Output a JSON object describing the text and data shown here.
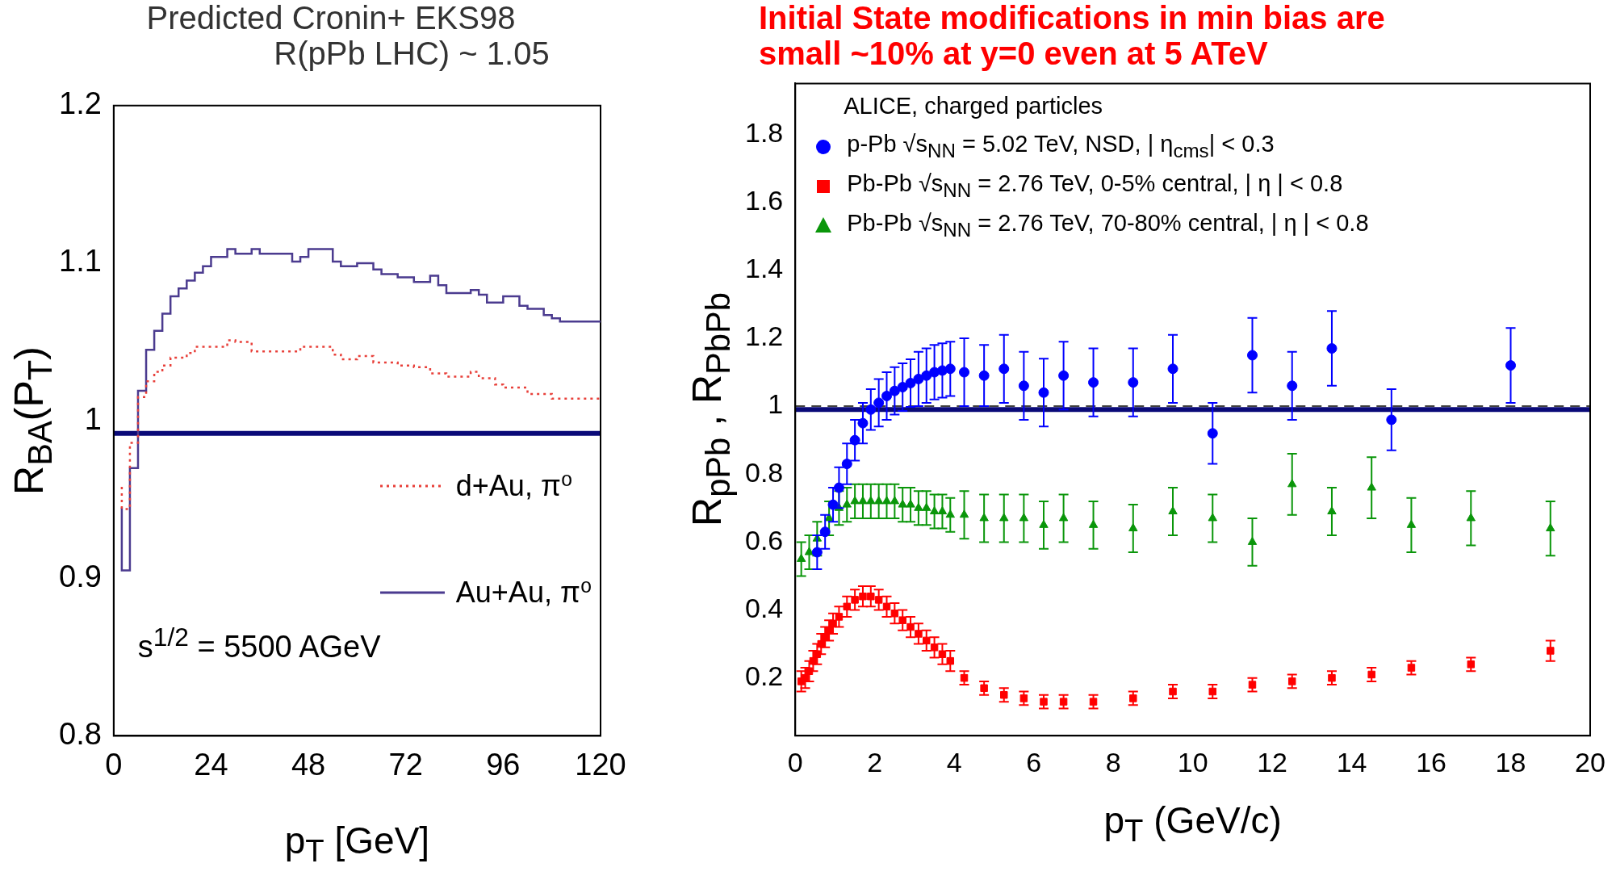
{
  "chart_data": [
    {
      "type": "step",
      "title": "Predicted Cronin+ EKS98",
      "subtitle": "R(pPb LHC) ~ 1.05",
      "xlabel": "p$_{T}$ [GeV]",
      "ylabel": "R$_{BA}$(P$_{T}$)",
      "xlim": [
        0,
        120
      ],
      "xticks": [
        0,
        24,
        48,
        72,
        96,
        120
      ],
      "ylim": [
        0.8,
        1.2
      ],
      "yticks": [
        0.8,
        0.9,
        1,
        1.1,
        1.2
      ],
      "grid": false,
      "legend": "bottom right",
      "annotations": [
        "s$^{1/2}$ = 5500 AGeV"
      ],
      "ref_lines": [
        {
          "axis": "y",
          "value": 0.992,
          "color": "#0a0a78"
        }
      ],
      "series": [
        {
          "name": "d+Au, π⁰",
          "color": "#e8403a",
          "line_style": "dotted",
          "x": [
            2,
            4,
            6,
            8,
            10,
            12,
            14,
            18,
            20,
            28,
            30,
            34,
            46,
            54,
            56,
            60,
            64,
            70,
            74,
            78,
            82,
            88,
            90,
            94,
            96,
            102,
            108,
            114,
            120
          ],
          "values": [
            0.958,
            0.944,
            0.986,
            1.015,
            1.025,
            1.031,
            1.035,
            1.04,
            1.043,
            1.047,
            1.051,
            1.05,
            1.044,
            1.047,
            1.042,
            1.039,
            1.041,
            1.037,
            1.035,
            1.034,
            1.03,
            1.028,
            1.031,
            1.027,
            1.023,
            1.021,
            1.017,
            1.014,
            1.014
          ]
        },
        {
          "name": "Au+Au, π⁰",
          "color": "#4b3b8f",
          "line_style": "solid",
          "x": [
            2,
            4,
            6,
            8,
            10,
            12,
            14,
            16,
            18,
            20,
            22,
            24,
            28,
            30,
            34,
            36,
            44,
            46,
            48,
            54,
            56,
            60,
            64,
            66,
            70,
            74,
            78,
            80,
            82,
            88,
            90,
            92,
            96,
            100,
            102,
            106,
            108,
            110,
            114,
            120
          ],
          "values": [
            0.945,
            0.905,
            0.97,
            1.019,
            1.045,
            1.057,
            1.068,
            1.079,
            1.084,
            1.089,
            1.094,
            1.098,
            1.104,
            1.109,
            1.106,
            1.109,
            1.106,
            1.101,
            1.104,
            1.109,
            1.101,
            1.098,
            1.1,
            1.096,
            1.093,
            1.091,
            1.088,
            1.092,
            1.086,
            1.081,
            1.083,
            1.08,
            1.075,
            1.079,
            1.073,
            1.071,
            1.067,
            1.065,
            1.063,
            1.063
          ]
        }
      ]
    },
    {
      "type": "scatter",
      "title": "Initial State modifications in min bias are",
      "subtitle": "small ~10% at y=0  even at 5  ATeV",
      "xlabel": "p$_{T}$ (GeV/c)",
      "ylabel": "R$_{pPb}$ , R$_{PbPb}$",
      "legend_title": "ALICE, charged particles",
      "legend": "top left",
      "xlim": [
        0,
        20
      ],
      "xticks": [
        0,
        2,
        4,
        6,
        8,
        10,
        12,
        14,
        16,
        18,
        20
      ],
      "ylim": [
        0.03,
        1.95
      ],
      "yticks": [
        0.2,
        0.4,
        0.6,
        0.8,
        1,
        1.2,
        1.4,
        1.6,
        1.8
      ],
      "grid": false,
      "ref_lines": [
        {
          "axis": "y",
          "value": 1,
          "color": "#000000",
          "line_style": "dashed"
        },
        {
          "axis": "y",
          "value": 0.99,
          "color": "#0a0a78"
        }
      ],
      "series": [
        {
          "name": "p-Pb  √s$_{NN}$ = 5.02 TeV,  NSD, | η$_{cms}$| < 0.3",
          "color": "#0000ff",
          "marker": "circle",
          "x": [
            0.55,
            0.75,
            0.95,
            1.1,
            1.3,
            1.5,
            1.7,
            1.9,
            2.1,
            2.3,
            2.5,
            2.7,
            2.9,
            3.1,
            3.3,
            3.5,
            3.7,
            3.9,
            4.25,
            4.75,
            5.25,
            5.75,
            6.25,
            6.75,
            7.5,
            8.5,
            9.5,
            10.5,
            11.5,
            12.5,
            13.5,
            15,
            18
          ],
          "values": [
            0.57,
            0.63,
            0.71,
            0.76,
            0.83,
            0.9,
            0.95,
            0.99,
            1.01,
            1.03,
            1.045,
            1.056,
            1.068,
            1.08,
            1.09,
            1.1,
            1.105,
            1.11,
            1.1,
            1.09,
            1.11,
            1.06,
            1.04,
            1.09,
            1.07,
            1.07,
            1.11,
            0.92,
            1.15,
            1.06,
            1.17,
            0.96,
            1.12
          ],
          "errors": [
            0.05,
            0.05,
            0.05,
            0.06,
            0.06,
            0.06,
            0.06,
            0.06,
            0.07,
            0.07,
            0.07,
            0.07,
            0.07,
            0.08,
            0.08,
            0.08,
            0.08,
            0.08,
            0.1,
            0.09,
            0.1,
            0.1,
            0.1,
            0.1,
            0.1,
            0.1,
            0.1,
            0.09,
            0.11,
            0.1,
            0.11,
            0.09,
            0.11
          ]
        },
        {
          "name": "Pb-Pb  √s$_{NN}$ = 2.76 TeV,  0-5% central, | η | < 0.8",
          "color": "#ff0000",
          "marker": "square",
          "x": [
            0.15,
            0.25,
            0.35,
            0.45,
            0.55,
            0.65,
            0.75,
            0.85,
            0.95,
            1.1,
            1.3,
            1.5,
            1.7,
            1.9,
            2.1,
            2.3,
            2.5,
            2.7,
            2.9,
            3.1,
            3.3,
            3.5,
            3.7,
            3.9,
            4.25,
            4.75,
            5.25,
            5.75,
            6.25,
            6.75,
            7.5,
            8.5,
            9.5,
            10.5,
            11.5,
            12.5,
            13.5,
            14.5,
            15.5,
            17,
            19
          ],
          "values": [
            0.19,
            0.2,
            0.22,
            0.25,
            0.27,
            0.3,
            0.32,
            0.34,
            0.36,
            0.38,
            0.41,
            0.43,
            0.44,
            0.44,
            0.43,
            0.41,
            0.39,
            0.37,
            0.35,
            0.33,
            0.31,
            0.29,
            0.27,
            0.25,
            0.2,
            0.17,
            0.15,
            0.14,
            0.13,
            0.13,
            0.13,
            0.14,
            0.16,
            0.16,
            0.18,
            0.19,
            0.2,
            0.21,
            0.23,
            0.24,
            0.28
          ],
          "errors": [
            0.03,
            0.03,
            0.03,
            0.03,
            0.03,
            0.03,
            0.03,
            0.03,
            0.03,
            0.03,
            0.03,
            0.03,
            0.03,
            0.03,
            0.03,
            0.03,
            0.03,
            0.03,
            0.03,
            0.03,
            0.03,
            0.03,
            0.03,
            0.03,
            0.02,
            0.02,
            0.02,
            0.02,
            0.02,
            0.02,
            0.02,
            0.02,
            0.02,
            0.02,
            0.02,
            0.02,
            0.02,
            0.02,
            0.02,
            0.02,
            0.03
          ]
        },
        {
          "name": "Pb-Pb  √s$_{NN}$ = 2.76 TeV,  70-80% central, | η | < 0.8",
          "color": "#0a960a",
          "marker": "triangle",
          "x": [
            0.15,
            0.35,
            0.55,
            0.85,
            1.1,
            1.3,
            1.5,
            1.7,
            1.9,
            2.1,
            2.3,
            2.5,
            2.7,
            2.9,
            3.1,
            3.3,
            3.5,
            3.7,
            3.9,
            4.25,
            4.75,
            5.25,
            5.75,
            6.25,
            6.75,
            7.5,
            8.5,
            9.5,
            10.5,
            11.5,
            12.5,
            13.5,
            14.5,
            15.5,
            17,
            19
          ],
          "values": [
            0.55,
            0.57,
            0.61,
            0.67,
            0.7,
            0.71,
            0.72,
            0.72,
            0.72,
            0.72,
            0.72,
            0.72,
            0.71,
            0.71,
            0.7,
            0.7,
            0.69,
            0.69,
            0.68,
            0.68,
            0.67,
            0.67,
            0.67,
            0.65,
            0.67,
            0.65,
            0.64,
            0.69,
            0.67,
            0.6,
            0.77,
            0.69,
            0.76,
            0.65,
            0.67,
            0.64
          ],
          "errors": [
            0.05,
            0.05,
            0.05,
            0.05,
            0.05,
            0.05,
            0.05,
            0.05,
            0.05,
            0.05,
            0.05,
            0.05,
            0.05,
            0.05,
            0.05,
            0.05,
            0.05,
            0.05,
            0.05,
            0.07,
            0.07,
            0.07,
            0.07,
            0.07,
            0.07,
            0.07,
            0.07,
            0.07,
            0.07,
            0.07,
            0.09,
            0.07,
            0.09,
            0.08,
            0.08,
            0.08
          ]
        }
      ]
    }
  ]
}
